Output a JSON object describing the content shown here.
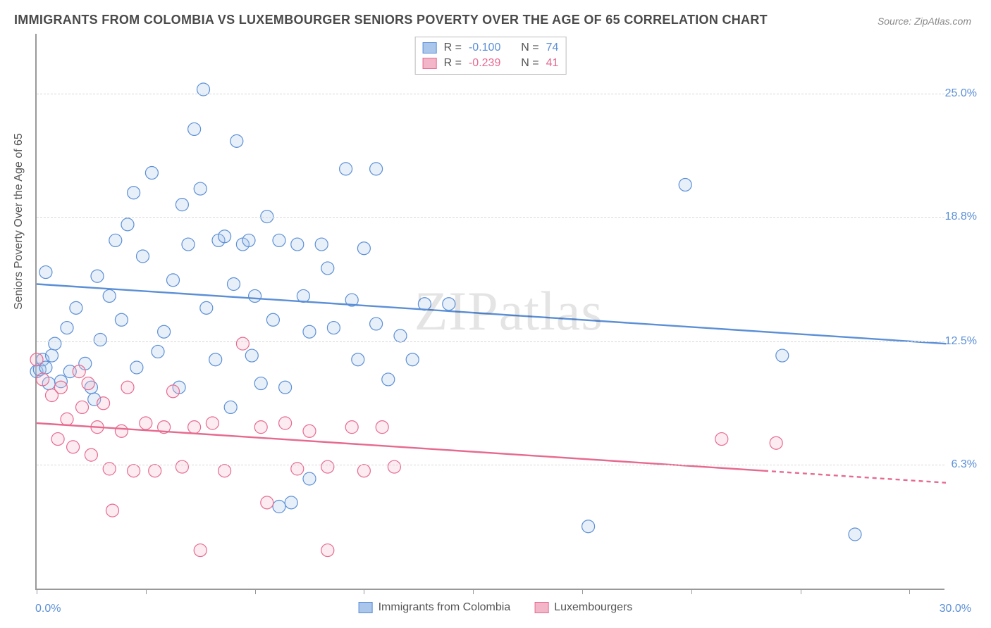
{
  "title": "IMMIGRANTS FROM COLOMBIA VS LUXEMBOURGER SENIORS POVERTY OVER THE AGE OF 65 CORRELATION CHART",
  "source": "Source: ZipAtlas.com",
  "watermark": "ZIPatlas",
  "y_axis_label": "Seniors Poverty Over the Age of 65",
  "chart": {
    "type": "scatter",
    "background_color": "#ffffff",
    "grid_color": "#d8d8d8",
    "axis_color": "#999999",
    "title_color": "#4a4a4a",
    "title_fontsize": 18,
    "label_fontsize": 16,
    "xlim": [
      0.0,
      30.0
    ],
    "ylim": [
      0.0,
      28.0
    ],
    "x_tick_positions": [
      0,
      3.6,
      7.2,
      10.8,
      14.4,
      18.0,
      21.6,
      25.2,
      28.8
    ],
    "y_gridlines": [
      6.3,
      12.5,
      18.8,
      25.0
    ],
    "y_tick_labels": [
      "6.3%",
      "12.5%",
      "18.8%",
      "25.0%"
    ],
    "x_min_label": "0.0%",
    "x_max_label": "30.0%",
    "marker_radius": 9,
    "marker_stroke_width": 1.2,
    "marker_fill_opacity": 0.28,
    "trend_line_width": 2.4,
    "series": [
      {
        "name": "Immigrants from Colombia",
        "color": "#5b8fd6",
        "fill": "#aac6ea",
        "R": "-0.100",
        "N": "74",
        "trend": {
          "x1": 0.0,
          "y1": 15.4,
          "x2": 30.0,
          "y2": 12.4
        },
        "points": [
          {
            "x": 0.0,
            "y": 11.0
          },
          {
            "x": 0.1,
            "y": 11.1
          },
          {
            "x": 0.2,
            "y": 11.6
          },
          {
            "x": 0.3,
            "y": 11.2
          },
          {
            "x": 0.5,
            "y": 11.8
          },
          {
            "x": 0.3,
            "y": 16.0
          },
          {
            "x": 0.6,
            "y": 12.4
          },
          {
            "x": 0.8,
            "y": 10.5
          },
          {
            "x": 1.0,
            "y": 13.2
          },
          {
            "x": 1.3,
            "y": 14.2
          },
          {
            "x": 1.6,
            "y": 11.4
          },
          {
            "x": 1.9,
            "y": 9.6
          },
          {
            "x": 2.1,
            "y": 12.6
          },
          {
            "x": 2.4,
            "y": 14.8
          },
          {
            "x": 2.6,
            "y": 17.6
          },
          {
            "x": 2.8,
            "y": 13.6
          },
          {
            "x": 3.0,
            "y": 18.4
          },
          {
            "x": 3.3,
            "y": 11.2
          },
          {
            "x": 3.5,
            "y": 16.8
          },
          {
            "x": 3.8,
            "y": 21.0
          },
          {
            "x": 4.2,
            "y": 13.0
          },
          {
            "x": 4.5,
            "y": 15.6
          },
          {
            "x": 4.7,
            "y": 10.2
          },
          {
            "x": 4.8,
            "y": 19.4
          },
          {
            "x": 5.0,
            "y": 17.4
          },
          {
            "x": 5.2,
            "y": 23.2
          },
          {
            "x": 5.5,
            "y": 25.2
          },
          {
            "x": 5.6,
            "y": 14.2
          },
          {
            "x": 5.9,
            "y": 11.6
          },
          {
            "x": 6.0,
            "y": 17.6
          },
          {
            "x": 6.2,
            "y": 17.8
          },
          {
            "x": 6.4,
            "y": 9.2
          },
          {
            "x": 6.6,
            "y": 22.6
          },
          {
            "x": 6.8,
            "y": 17.4
          },
          {
            "x": 7.0,
            "y": 17.6
          },
          {
            "x": 7.2,
            "y": 14.8
          },
          {
            "x": 7.4,
            "y": 10.4
          },
          {
            "x": 7.6,
            "y": 18.8
          },
          {
            "x": 7.8,
            "y": 13.6
          },
          {
            "x": 8.0,
            "y": 4.2
          },
          {
            "x": 8.0,
            "y": 17.6
          },
          {
            "x": 8.2,
            "y": 10.2
          },
          {
            "x": 8.4,
            "y": 4.4
          },
          {
            "x": 8.6,
            "y": 17.4
          },
          {
            "x": 9.0,
            "y": 13.0
          },
          {
            "x": 9.0,
            "y": 5.6
          },
          {
            "x": 9.4,
            "y": 17.4
          },
          {
            "x": 9.8,
            "y": 13.2
          },
          {
            "x": 10.2,
            "y": 21.2
          },
          {
            "x": 10.4,
            "y": 14.6
          },
          {
            "x": 10.6,
            "y": 11.6
          },
          {
            "x": 10.8,
            "y": 17.2
          },
          {
            "x": 11.2,
            "y": 21.2
          },
          {
            "x": 11.2,
            "y": 13.4
          },
          {
            "x": 11.6,
            "y": 10.6
          },
          {
            "x": 12.0,
            "y": 12.8
          },
          {
            "x": 12.4,
            "y": 11.6
          },
          {
            "x": 12.8,
            "y": 14.4
          },
          {
            "x": 13.6,
            "y": 14.4
          },
          {
            "x": 18.2,
            "y": 3.2
          },
          {
            "x": 21.4,
            "y": 20.4
          },
          {
            "x": 24.6,
            "y": 11.8
          },
          {
            "x": 27.0,
            "y": 2.8
          },
          {
            "x": 0.4,
            "y": 10.4
          },
          {
            "x": 1.1,
            "y": 11.0
          },
          {
            "x": 1.8,
            "y": 10.2
          },
          {
            "x": 2.0,
            "y": 15.8
          },
          {
            "x": 3.2,
            "y": 20.0
          },
          {
            "x": 4.0,
            "y": 12.0
          },
          {
            "x": 5.4,
            "y": 20.2
          },
          {
            "x": 6.5,
            "y": 15.4
          },
          {
            "x": 7.1,
            "y": 11.8
          },
          {
            "x": 8.8,
            "y": 14.8
          },
          {
            "x": 9.6,
            "y": 16.2
          }
        ]
      },
      {
        "name": "Luxembourgers",
        "color": "#e66a8f",
        "fill": "#f3b6c8",
        "R": "-0.239",
        "N": "41",
        "trend": {
          "x1": 0.0,
          "y1": 8.4,
          "x2": 30.0,
          "y2": 5.4
        },
        "trend_dash_after_x": 24.0,
        "points": [
          {
            "x": 0.0,
            "y": 11.6
          },
          {
            "x": 0.2,
            "y": 10.6
          },
          {
            "x": 0.5,
            "y": 9.8
          },
          {
            "x": 0.7,
            "y": 7.6
          },
          {
            "x": 0.8,
            "y": 10.2
          },
          {
            "x": 1.0,
            "y": 8.6
          },
          {
            "x": 1.2,
            "y": 7.2
          },
          {
            "x": 1.5,
            "y": 9.2
          },
          {
            "x": 1.7,
            "y": 10.4
          },
          {
            "x": 1.8,
            "y": 6.8
          },
          {
            "x": 2.0,
            "y": 8.2
          },
          {
            "x": 2.2,
            "y": 9.4
          },
          {
            "x": 2.4,
            "y": 6.1
          },
          {
            "x": 2.5,
            "y": 4.0
          },
          {
            "x": 2.8,
            "y": 8.0
          },
          {
            "x": 3.0,
            "y": 10.2
          },
          {
            "x": 3.2,
            "y": 6.0
          },
          {
            "x": 3.6,
            "y": 8.4
          },
          {
            "x": 3.9,
            "y": 6.0
          },
          {
            "x": 4.2,
            "y": 8.2
          },
          {
            "x": 4.5,
            "y": 10.0
          },
          {
            "x": 4.8,
            "y": 6.2
          },
          {
            "x": 5.2,
            "y": 8.2
          },
          {
            "x": 5.4,
            "y": 2.0
          },
          {
            "x": 5.8,
            "y": 8.4
          },
          {
            "x": 6.2,
            "y": 6.0
          },
          {
            "x": 6.8,
            "y": 12.4
          },
          {
            "x": 7.4,
            "y": 8.2
          },
          {
            "x": 7.6,
            "y": 4.4
          },
          {
            "x": 8.2,
            "y": 8.4
          },
          {
            "x": 8.6,
            "y": 6.1
          },
          {
            "x": 9.0,
            "y": 8.0
          },
          {
            "x": 9.6,
            "y": 6.2
          },
          {
            "x": 9.6,
            "y": 2.0
          },
          {
            "x": 10.4,
            "y": 8.2
          },
          {
            "x": 10.8,
            "y": 6.0
          },
          {
            "x": 11.4,
            "y": 8.2
          },
          {
            "x": 11.8,
            "y": 6.2
          },
          {
            "x": 22.6,
            "y": 7.6
          },
          {
            "x": 24.4,
            "y": 7.4
          },
          {
            "x": 1.4,
            "y": 11.0
          }
        ]
      }
    ]
  },
  "legend_top": {
    "r_label": "R =",
    "n_label": "N ="
  },
  "legend_bottom": {
    "items": [
      "Immigrants from Colombia",
      "Luxembourgers"
    ]
  }
}
